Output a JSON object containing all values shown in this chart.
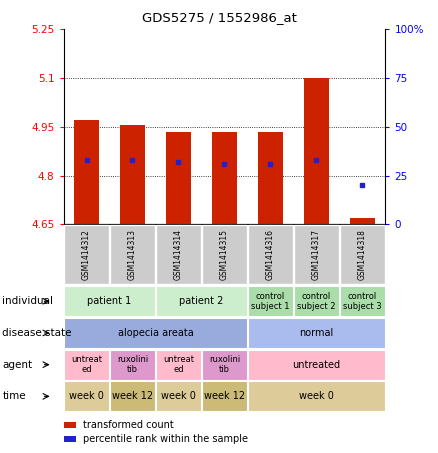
{
  "title": "GDS5275 / 1552986_at",
  "samples": [
    "GSM1414312",
    "GSM1414313",
    "GSM1414314",
    "GSM1414315",
    "GSM1414316",
    "GSM1414317",
    "GSM1414318"
  ],
  "transformed_count": [
    4.97,
    4.955,
    4.935,
    4.935,
    4.935,
    5.1,
    4.67
  ],
  "percentile_rank": [
    33,
    33,
    32,
    31,
    31,
    33,
    20
  ],
  "ylim_left": [
    4.65,
    5.25
  ],
  "ylim_right": [
    0,
    100
  ],
  "yticks_left": [
    4.65,
    4.8,
    4.95,
    5.1,
    5.25
  ],
  "yticks_left_labels": [
    "4.65",
    "4.8",
    "4.95",
    "5.1",
    "5.25"
  ],
  "yticks_right": [
    0,
    25,
    50,
    75,
    100
  ],
  "yticks_right_labels": [
    "0",
    "25",
    "50",
    "75",
    "100%"
  ],
  "bar_color": "#cc2200",
  "dot_color": "#2222cc",
  "bar_bottom": 4.65,
  "grid_lines": [
    4.8,
    4.95,
    5.1
  ],
  "sample_box_color": "#cccccc",
  "annot_data": {
    "individual": {
      "label": "individual",
      "groups": [
        {
          "text": "patient 1",
          "span": [
            0,
            2
          ],
          "color": "#cceecc"
        },
        {
          "text": "patient 2",
          "span": [
            2,
            4
          ],
          "color": "#cceecc"
        },
        {
          "text": "control\nsubject 1",
          "span": [
            4,
            5
          ],
          "color": "#aaddaa"
        },
        {
          "text": "control\nsubject 2",
          "span": [
            5,
            6
          ],
          "color": "#aaddaa"
        },
        {
          "text": "control\nsubject 3",
          "span": [
            6,
            7
          ],
          "color": "#aaddaa"
        }
      ]
    },
    "disease_state": {
      "label": "disease state",
      "groups": [
        {
          "text": "alopecia areata",
          "span": [
            0,
            4
          ],
          "color": "#99aadd"
        },
        {
          "text": "normal",
          "span": [
            4,
            7
          ],
          "color": "#aabbee"
        }
      ]
    },
    "agent": {
      "label": "agent",
      "groups": [
        {
          "text": "untreat\ned",
          "span": [
            0,
            1
          ],
          "color": "#ffbbcc"
        },
        {
          "text": "ruxolini\ntib",
          "span": [
            1,
            2
          ],
          "color": "#dd99cc"
        },
        {
          "text": "untreat\ned",
          "span": [
            2,
            3
          ],
          "color": "#ffbbcc"
        },
        {
          "text": "ruxolini\ntib",
          "span": [
            3,
            4
          ],
          "color": "#dd99cc"
        },
        {
          "text": "untreated",
          "span": [
            4,
            7
          ],
          "color": "#ffbbcc"
        }
      ]
    },
    "time": {
      "label": "time",
      "groups": [
        {
          "text": "week 0",
          "span": [
            0,
            1
          ],
          "color": "#ddcc99"
        },
        {
          "text": "week 12",
          "span": [
            1,
            2
          ],
          "color": "#ccbb77"
        },
        {
          "text": "week 0",
          "span": [
            2,
            3
          ],
          "color": "#ddcc99"
        },
        {
          "text": "week 12",
          "span": [
            3,
            4
          ],
          "color": "#ccbb77"
        },
        {
          "text": "week 0",
          "span": [
            4,
            7
          ],
          "color": "#ddcc99"
        }
      ]
    }
  },
  "legend": [
    {
      "label": "transformed count",
      "color": "#cc2200"
    },
    {
      "label": "percentile rank within the sample",
      "color": "#2222cc"
    }
  ],
  "annot_order": [
    "individual",
    "disease_state",
    "agent",
    "time"
  ]
}
